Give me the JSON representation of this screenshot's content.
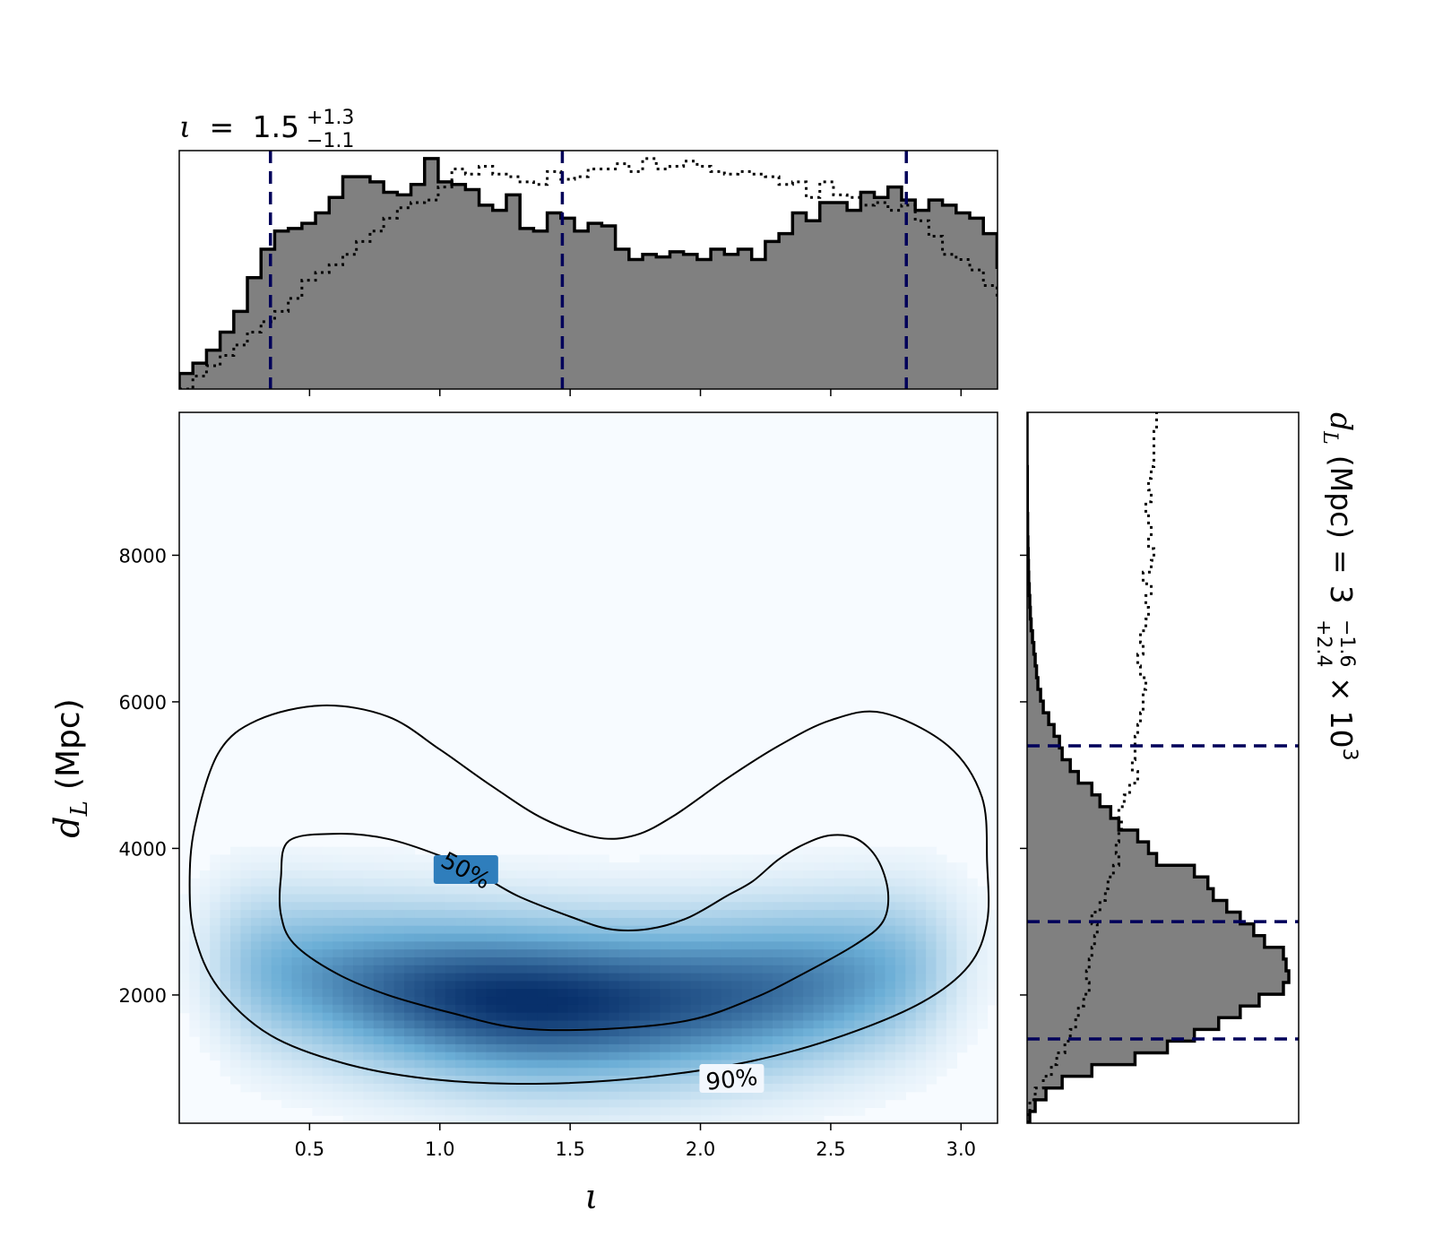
{
  "chart_data": [
    {
      "type": "heatmap",
      "panel": "joint",
      "xlabel": "ι",
      "ylabel": "d_L (Mpc)",
      "ylabel_parts": {
        "main": "d",
        "sub": "L",
        "unit": "(Mpc)"
      },
      "xlim": [
        0.0,
        3.14
      ],
      "ylim": [
        250,
        9950
      ],
      "x_ticks": [
        0.5,
        1.0,
        1.5,
        2.0,
        2.5,
        3.0
      ],
      "x_tick_labels": [
        "0.5",
        "1.0",
        "1.5",
        "2.0",
        "2.5",
        "3.0"
      ],
      "y_ticks": [
        2000,
        4000,
        6000,
        8000
      ],
      "y_tick_labels": [
        "2000",
        "4000",
        "6000",
        "8000"
      ],
      "colormap": "Blues",
      "colors": {
        "low": "#f7fbff",
        "mid": "#6baed6",
        "high": "#08306b"
      },
      "density_peaks": [
        {
          "x": 1.15,
          "y": 2450
        },
        {
          "x": 2.2,
          "y": 2550
        }
      ],
      "contours": [
        {
          "level_label": "50%",
          "label_at": {
            "x": 1.1,
            "y": 3700
          },
          "path": [
            [
              0.42,
              4100
            ],
            [
              0.6,
              4200
            ],
            [
              0.8,
              4130
            ],
            [
              1.0,
              3900
            ],
            [
              1.15,
              3650
            ],
            [
              1.3,
              3350
            ],
            [
              1.5,
              3070
            ],
            [
              1.65,
              2900
            ],
            [
              1.8,
              2900
            ],
            [
              1.95,
              3050
            ],
            [
              2.1,
              3350
            ],
            [
              2.2,
              3550
            ],
            [
              2.3,
              3850
            ],
            [
              2.4,
              4060
            ],
            [
              2.5,
              4180
            ],
            [
              2.6,
              4130
            ],
            [
              2.68,
              3850
            ],
            [
              2.72,
              3400
            ],
            [
              2.7,
              3000
            ],
            [
              2.6,
              2700
            ],
            [
              2.4,
              2300
            ],
            [
              2.2,
              1950
            ],
            [
              1.95,
              1650
            ],
            [
              1.6,
              1530
            ],
            [
              1.3,
              1550
            ],
            [
              1.05,
              1750
            ],
            [
              0.8,
              2000
            ],
            [
              0.6,
              2300
            ],
            [
              0.44,
              2700
            ],
            [
              0.39,
              3100
            ],
            [
              0.39,
              3600
            ]
          ]
        },
        {
          "level_label": "90%",
          "label_at": {
            "x": 2.12,
            "y": 850
          },
          "path": [
            [
              0.15,
              5300
            ],
            [
              0.3,
              5750
            ],
            [
              0.55,
              5950
            ],
            [
              0.8,
              5800
            ],
            [
              1.0,
              5350
            ],
            [
              1.2,
              4850
            ],
            [
              1.4,
              4400
            ],
            [
              1.6,
              4150
            ],
            [
              1.75,
              4180
            ],
            [
              1.9,
              4450
            ],
            [
              2.1,
              4950
            ],
            [
              2.3,
              5400
            ],
            [
              2.5,
              5750
            ],
            [
              2.7,
              5850
            ],
            [
              2.95,
              5400
            ],
            [
              3.08,
              4700
            ],
            [
              3.1,
              3800
            ],
            [
              3.1,
              3000
            ],
            [
              3.03,
              2400
            ],
            [
              2.85,
              1900
            ],
            [
              2.55,
              1450
            ],
            [
              2.2,
              1100
            ],
            [
              1.8,
              880
            ],
            [
              1.4,
              790
            ],
            [
              1.0,
              840
            ],
            [
              0.65,
              1050
            ],
            [
              0.35,
              1450
            ],
            [
              0.15,
              2100
            ],
            [
              0.06,
              2800
            ],
            [
              0.04,
              3500
            ],
            [
              0.06,
              4300
            ]
          ]
        }
      ]
    },
    {
      "type": "histogram",
      "panel": "top-marginal",
      "title": "ι = 1.5^{+1.3}_{−1.1}",
      "title_parts": {
        "symbol": "ι",
        "eq": "=",
        "median": "1.5",
        "upper": "+1.3",
        "lower": "−1.1"
      },
      "xlim": [
        0.0,
        3.14
      ],
      "bin_edges_start": 0.0,
      "bin_width": 0.0523,
      "posterior_values": [
        0.06,
        0.1,
        0.15,
        0.22,
        0.3,
        0.43,
        0.54,
        0.61,
        0.62,
        0.64,
        0.68,
        0.74,
        0.82,
        0.82,
        0.8,
        0.76,
        0.75,
        0.79,
        0.89,
        0.8,
        0.79,
        0.77,
        0.71,
        0.69,
        0.75,
        0.62,
        0.61,
        0.68,
        0.66,
        0.61,
        0.64,
        0.63,
        0.54,
        0.5,
        0.52,
        0.51,
        0.53,
        0.52,
        0.5,
        0.54,
        0.52,
        0.54,
        0.5,
        0.57,
        0.6,
        0.68,
        0.65,
        0.72,
        0.72,
        0.69,
        0.76,
        0.74,
        0.78,
        0.73,
        0.69,
        0.73,
        0.71,
        0.68,
        0.66,
        0.6,
        0.47,
        0.44,
        0.42,
        0.38,
        0.27,
        0.17,
        0.09,
        0.07,
        0.06
      ],
      "prior_values": [
        0.0,
        0.05,
        0.09,
        0.13,
        0.17,
        0.22,
        0.26,
        0.3,
        0.35,
        0.42,
        0.45,
        0.48,
        0.52,
        0.57,
        0.61,
        0.66,
        0.7,
        0.72,
        0.73,
        0.78,
        0.85,
        0.83,
        0.86,
        0.83,
        0.82,
        0.8,
        0.79,
        0.84,
        0.81,
        0.82,
        0.85,
        0.85,
        0.87,
        0.84,
        0.89,
        0.85,
        0.86,
        0.88,
        0.86,
        0.84,
        0.83,
        0.84,
        0.83,
        0.82,
        0.79,
        0.8,
        0.74,
        0.8,
        0.75,
        0.74,
        0.71,
        0.72,
        0.69,
        0.71,
        0.65,
        0.59,
        0.52,
        0.5,
        0.46,
        0.4,
        0.34,
        0.38,
        0.3,
        0.24,
        0.18,
        0.12,
        0.06,
        0.03,
        0.0
      ],
      "quantile_lines": [
        0.35,
        1.47,
        2.79
      ],
      "colors": {
        "fill": "#808080",
        "edge": "#000000",
        "quantile": "#00005a"
      }
    },
    {
      "type": "histogram",
      "panel": "right-marginal",
      "orientation": "horizontal",
      "title": "d_L (Mpc) = 3^{+2.4}_{−1.6} × 10^3",
      "title_parts": {
        "main": "d",
        "sub": "L",
        "unit": "(Mpc)",
        "eq": "=",
        "median": "3",
        "upper": "+2.4",
        "lower": "−1.6",
        "times": "×",
        "base": "10",
        "exp": "3"
      },
      "ylim": [
        250,
        9950
      ],
      "bin_edges_start": 250,
      "bin_width": 160,
      "posterior_values": [
        0.01,
        0.03,
        0.07,
        0.13,
        0.24,
        0.4,
        0.52,
        0.62,
        0.71,
        0.79,
        0.86,
        0.95,
        0.97,
        0.96,
        0.95,
        0.88,
        0.84,
        0.79,
        0.74,
        0.69,
        0.67,
        0.62,
        0.48,
        0.45,
        0.41,
        0.34,
        0.31,
        0.27,
        0.24,
        0.19,
        0.16,
        0.13,
        0.12,
        0.1,
        0.08,
        0.06,
        0.05,
        0.04,
        0.035,
        0.03,
        0.025,
        0.02,
        0.015,
        0.012,
        0.01,
        0.008,
        0.006,
        0.005,
        0.004,
        0.003,
        0.002,
        0.002,
        0.001,
        0.001,
        0.001,
        0.001,
        0.0,
        0.0,
        0.0,
        0.0,
        0.0
      ],
      "prior_values": [
        0.0,
        0.01,
        0.03,
        0.06,
        0.09,
        0.11,
        0.14,
        0.16,
        0.18,
        0.19,
        0.21,
        0.23,
        0.22,
        0.23,
        0.24,
        0.25,
        0.26,
        0.24,
        0.27,
        0.29,
        0.3,
        0.32,
        0.34,
        0.33,
        0.34,
        0.35,
        0.34,
        0.36,
        0.38,
        0.41,
        0.39,
        0.4,
        0.4,
        0.41,
        0.42,
        0.43,
        0.43,
        0.44,
        0.42,
        0.41,
        0.43,
        0.42,
        0.44,
        0.45,
        0.44,
        0.46,
        0.43,
        0.46,
        0.47,
        0.45,
        0.46,
        0.45,
        0.44,
        0.46,
        0.45,
        0.46,
        0.47,
        0.47,
        0.47,
        0.48,
        0.48
      ],
      "quantile_lines": [
        1400,
        3000,
        5400
      ],
      "colors": {
        "fill": "#808080",
        "edge": "#000000",
        "quantile": "#00005a"
      }
    }
  ]
}
